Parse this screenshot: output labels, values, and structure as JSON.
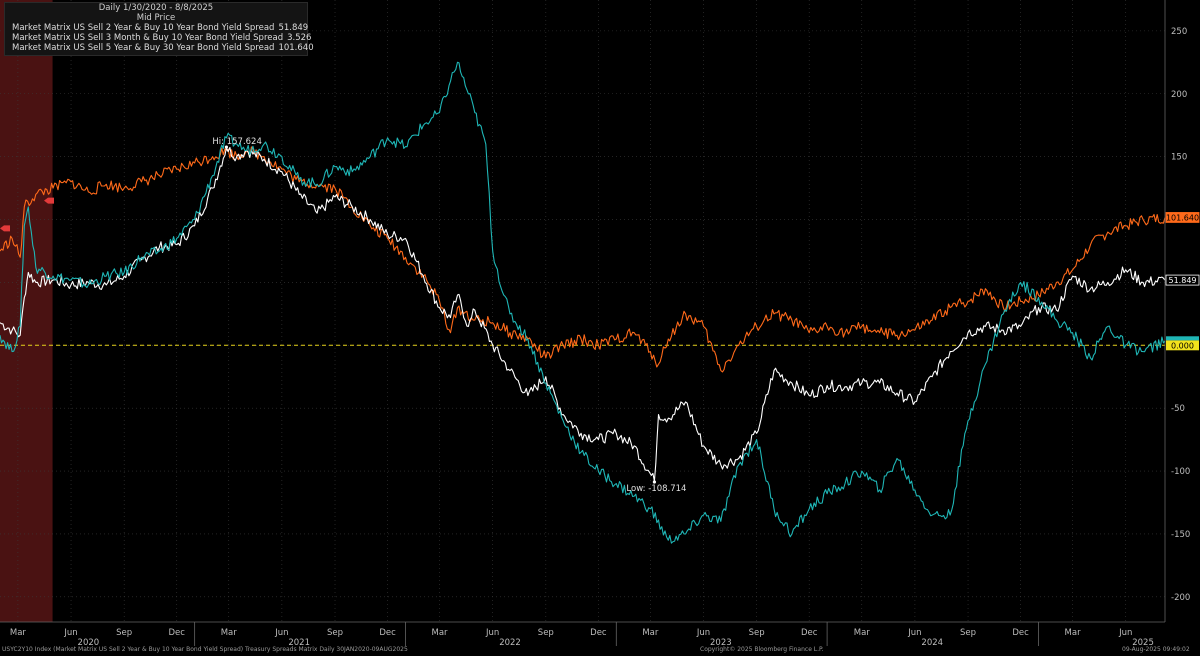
{
  "legend": {
    "header_line1": "Daily 1/30/2020 - 8/8/2025",
    "header_line2": "Mid Price"
  },
  "footer": {
    "left": "USYC2Y10 Index (Market Matrix US Sell 2 Year & Buy 10 Year Bond Yield Spread) Treasury Spreads Matrix  Daily 30JAN2020-09AUG2025",
    "center": "Copyright© 2025 Bloomberg Finance L.P.",
    "right": "09-Aug-2025 09:49:02"
  },
  "colors": {
    "background": "#000000",
    "series_2s10s": "#ffffff",
    "series_3m10y": "#1fb6b6",
    "series_5s30s": "#ff6a1a",
    "zero_line": "#e6d21a",
    "recession_shade": "#4a1212",
    "grid": "#3a3a3a"
  },
  "chart_data": {
    "type": "line",
    "ylim": [
      -220,
      265
    ],
    "y_ticks": [
      250,
      200,
      150,
      100,
      50,
      0,
      -50,
      -100,
      -150,
      -200
    ],
    "y_tick_labels": [
      "250",
      "200",
      "150",
      "100",
      "50",
      "0",
      "-50",
      "-100",
      "-150",
      "-200"
    ],
    "x_range": [
      "2020-01-30",
      "2025-08-08"
    ],
    "x_month_ticks": [
      {
        "date": "2020-03-01",
        "label": "Mar"
      },
      {
        "date": "2020-06-01",
        "label": "Jun"
      },
      {
        "date": "2020-09-01",
        "label": "Sep"
      },
      {
        "date": "2020-12-01",
        "label": "Dec"
      },
      {
        "date": "2021-03-01",
        "label": "Mar"
      },
      {
        "date": "2021-06-01",
        "label": "Jun"
      },
      {
        "date": "2021-09-01",
        "label": "Sep"
      },
      {
        "date": "2021-12-01",
        "label": "Dec"
      },
      {
        "date": "2022-03-01",
        "label": "Mar"
      },
      {
        "date": "2022-06-01",
        "label": "Jun"
      },
      {
        "date": "2022-09-01",
        "label": "Sep"
      },
      {
        "date": "2022-12-01",
        "label": "Dec"
      },
      {
        "date": "2023-03-01",
        "label": "Mar"
      },
      {
        "date": "2023-06-01",
        "label": "Jun"
      },
      {
        "date": "2023-09-01",
        "label": "Sep"
      },
      {
        "date": "2023-12-01",
        "label": "Dec"
      },
      {
        "date": "2024-03-01",
        "label": "Mar"
      },
      {
        "date": "2024-06-01",
        "label": "Jun"
      },
      {
        "date": "2024-09-01",
        "label": "Sep"
      },
      {
        "date": "2024-12-01",
        "label": "Dec"
      },
      {
        "date": "2025-03-01",
        "label": "Mar"
      },
      {
        "date": "2025-06-01",
        "label": "Jun"
      }
    ],
    "x_year_labels": [
      {
        "date": "2020-07-01",
        "label": "2020"
      },
      {
        "date": "2021-07-01",
        "label": "2021"
      },
      {
        "date": "2022-07-01",
        "label": "2022"
      },
      {
        "date": "2023-07-01",
        "label": "2023"
      },
      {
        "date": "2024-07-01",
        "label": "2024"
      },
      {
        "date": "2025-07-01",
        "label": "2025"
      }
    ],
    "recession_span": [
      "2020-01-30",
      "2020-04-30"
    ],
    "zero_line_label": "0.000",
    "annotations": [
      {
        "text": "Hi: 157.624",
        "date": "2021-02-25",
        "value": 157.624
      },
      {
        "text": "Low: -108.714",
        "date": "2023-03-08",
        "value": -108.714
      }
    ],
    "series": [
      {
        "name": "Market Matrix US Sell 2 Year & Buy 10 Year Bond Yield Spread",
        "last_label": "51.849",
        "last_value": 51.849,
        "dates": [
          "2020-01-30",
          "2020-02-20",
          "2020-03-05",
          "2020-03-12",
          "2020-03-19",
          "2020-04-01",
          "2020-05-01",
          "2020-06-01",
          "2020-07-01",
          "2020-08-01",
          "2020-09-01",
          "2020-10-01",
          "2020-11-01",
          "2020-12-01",
          "2021-01-01",
          "2021-02-01",
          "2021-02-25",
          "2021-03-15",
          "2021-04-01",
          "2021-05-01",
          "2021-06-01",
          "2021-07-01",
          "2021-08-01",
          "2021-09-01",
          "2021-10-01",
          "2021-11-01",
          "2021-12-01",
          "2022-01-01",
          "2022-02-01",
          "2022-03-01",
          "2022-03-20",
          "2022-04-01",
          "2022-04-20",
          "2022-05-01",
          "2022-06-01",
          "2022-07-01",
          "2022-08-01",
          "2022-09-01",
          "2022-10-01",
          "2022-11-01",
          "2022-12-01",
          "2023-01-01",
          "2023-02-01",
          "2023-03-08",
          "2023-03-15",
          "2023-04-01",
          "2023-05-01",
          "2023-06-01",
          "2023-07-01",
          "2023-08-01",
          "2023-09-01",
          "2023-10-01",
          "2023-11-01",
          "2023-12-01",
          "2024-01-01",
          "2024-02-01",
          "2024-03-01",
          "2024-04-01",
          "2024-05-01",
          "2024-06-01",
          "2024-07-01",
          "2024-08-01",
          "2024-09-01",
          "2024-10-01",
          "2024-11-01",
          "2024-12-01",
          "2025-01-01",
          "2025-02-01",
          "2025-03-01",
          "2025-04-01",
          "2025-05-01",
          "2025-06-01",
          "2025-07-01",
          "2025-08-08"
        ],
        "values": [
          18,
          12,
          8,
          38,
          58,
          50,
          52,
          48,
          50,
          48,
          55,
          68,
          78,
          80,
          95,
          125,
          157,
          150,
          155,
          148,
          138,
          120,
          105,
          118,
          110,
          100,
          88,
          85,
          55,
          30,
          22,
          40,
          15,
          28,
          0,
          -20,
          -40,
          -25,
          -55,
          -70,
          -75,
          -70,
          -80,
          -108,
          -55,
          -58,
          -45,
          -80,
          -95,
          -90,
          -70,
          -20,
          -30,
          -40,
          -32,
          -33,
          -30,
          -30,
          -38,
          -45,
          -25,
          -5,
          10,
          15,
          12,
          15,
          30,
          28,
          55,
          45,
          50,
          60,
          50,
          51.849
        ]
      },
      {
        "name": "Market Matrix US Sell 3 Month & Buy 10 Year Bond Yield Spread",
        "last_label": "3.526",
        "last_value": 3.526,
        "dates": [
          "2020-01-30",
          "2020-02-20",
          "2020-03-05",
          "2020-03-12",
          "2020-03-19",
          "2020-04-01",
          "2020-05-01",
          "2020-06-01",
          "2020-07-01",
          "2020-08-01",
          "2020-09-01",
          "2020-10-01",
          "2020-11-01",
          "2020-12-01",
          "2021-01-01",
          "2021-02-01",
          "2021-02-25",
          "2021-03-15",
          "2021-04-01",
          "2021-05-01",
          "2021-06-01",
          "2021-07-01",
          "2021-08-01",
          "2021-09-01",
          "2021-10-01",
          "2021-11-01",
          "2021-12-01",
          "2022-01-01",
          "2022-02-01",
          "2022-03-01",
          "2022-03-20",
          "2022-04-01",
          "2022-04-20",
          "2022-05-01",
          "2022-05-20",
          "2022-06-01",
          "2022-06-20",
          "2022-07-01",
          "2022-08-01",
          "2022-09-01",
          "2022-10-01",
          "2022-11-01",
          "2022-12-01",
          "2023-01-01",
          "2023-02-01",
          "2023-03-01",
          "2023-04-01",
          "2023-05-01",
          "2023-06-01",
          "2023-07-01",
          "2023-08-01",
          "2023-09-01",
          "2023-10-01",
          "2023-11-01",
          "2023-12-01",
          "2024-01-01",
          "2024-02-01",
          "2024-03-01",
          "2024-04-01",
          "2024-05-01",
          "2024-06-01",
          "2024-07-01",
          "2024-08-01",
          "2024-09-01",
          "2024-10-01",
          "2024-11-01",
          "2024-12-01",
          "2025-01-01",
          "2025-02-01",
          "2025-03-01",
          "2025-04-01",
          "2025-05-01",
          "2025-06-01",
          "2025-07-01",
          "2025-08-08"
        ],
        "values": [
          8,
          -5,
          15,
          95,
          110,
          62,
          55,
          52,
          48,
          55,
          58,
          70,
          75,
          85,
          100,
          135,
          165,
          160,
          155,
          160,
          150,
          132,
          128,
          142,
          138,
          150,
          165,
          158,
          175,
          185,
          210,
          225,
          200,
          185,
          160,
          75,
          40,
          25,
          5,
          -30,
          -60,
          -85,
          -100,
          -110,
          -120,
          -130,
          -155,
          -150,
          -135,
          -140,
          -95,
          -75,
          -130,
          -150,
          -130,
          -118,
          -110,
          -100,
          -115,
          -90,
          -115,
          -135,
          -135,
          -60,
          -15,
          25,
          50,
          38,
          20,
          10,
          -10,
          15,
          0,
          -5,
          3.526
        ]
      },
      {
        "name": "Market Matrix US Sell 5 Year & Buy 30 Year Bond Yield Spread",
        "last_label": "101.640",
        "last_value": 101.64,
        "dates": [
          "2020-01-30",
          "2020-02-20",
          "2020-03-05",
          "2020-03-12",
          "2020-04-01",
          "2020-05-01",
          "2020-06-01",
          "2020-07-01",
          "2020-08-01",
          "2020-09-01",
          "2020-10-01",
          "2020-11-01",
          "2020-12-01",
          "2021-01-01",
          "2021-02-01",
          "2021-02-25",
          "2021-03-15",
          "2021-04-01",
          "2021-05-01",
          "2021-06-01",
          "2021-07-01",
          "2021-08-01",
          "2021-09-01",
          "2021-10-01",
          "2021-11-01",
          "2021-12-01",
          "2022-01-01",
          "2022-02-01",
          "2022-03-01",
          "2022-03-20",
          "2022-04-01",
          "2022-05-01",
          "2022-06-01",
          "2022-07-01",
          "2022-08-01",
          "2022-09-01",
          "2022-10-01",
          "2022-11-01",
          "2022-12-01",
          "2023-01-01",
          "2023-02-01",
          "2023-03-01",
          "2023-03-15",
          "2023-04-01",
          "2023-05-01",
          "2023-06-01",
          "2023-07-01",
          "2023-08-01",
          "2023-09-01",
          "2023-10-01",
          "2023-11-01",
          "2023-12-01",
          "2024-01-01",
          "2024-02-01",
          "2024-03-01",
          "2024-04-01",
          "2024-05-01",
          "2024-06-01",
          "2024-07-01",
          "2024-08-01",
          "2024-09-01",
          "2024-10-01",
          "2024-11-01",
          "2024-12-01",
          "2025-01-01",
          "2025-02-01",
          "2025-03-01",
          "2025-04-01",
          "2025-05-01",
          "2025-06-01",
          "2025-07-01",
          "2025-08-08"
        ],
        "values": [
          75,
          85,
          70,
          110,
          120,
          125,
          130,
          122,
          128,
          125,
          130,
          135,
          140,
          145,
          150,
          155,
          150,
          155,
          150,
          140,
          130,
          128,
          125,
          110,
          95,
          85,
          70,
          55,
          35,
          10,
          30,
          20,
          18,
          10,
          5,
          -10,
          0,
          5,
          0,
          5,
          10,
          -5,
          -15,
          5,
          25,
          15,
          -20,
          0,
          15,
          25,
          20,
          10,
          15,
          10,
          15,
          10,
          8,
          12,
          20,
          30,
          35,
          45,
          30,
          35,
          40,
          50,
          60,
          80,
          90,
          95,
          100,
          101.64
        ]
      }
    ]
  }
}
